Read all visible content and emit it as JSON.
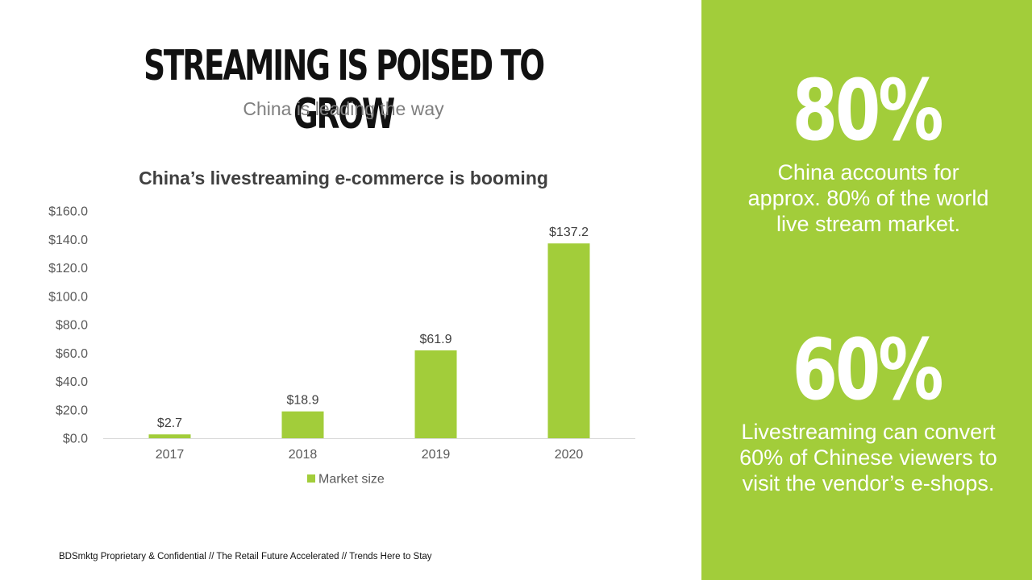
{
  "slide": {
    "title": "STREAMING IS POISED TO GROW",
    "subtitle": "China is leading the way",
    "footer": "BDSmktg Proprietary & Confidential // The Retail Future Accelerated // Trends Here to Stay"
  },
  "stats": [
    {
      "value": "80%",
      "text": "China accounts for approx. 80% of the world live stream market."
    },
    {
      "value": "60%",
      "text": "Livestreaming can convert 60% of Chinese viewers to visit the vendor’s e-shops."
    }
  ],
  "colors": {
    "accent": "#a2cd3a",
    "bar": "#a2cd3a"
  },
  "chart_data": {
    "type": "bar",
    "title": "China’s livestreaming e-commerce is booming",
    "categories": [
      "2017",
      "2018",
      "2019",
      "2020"
    ],
    "series": [
      {
        "name": "Market size",
        "values": [
          2.7,
          18.9,
          61.9,
          137.2
        ]
      }
    ],
    "data_labels": [
      "$2.7",
      "$18.9",
      "$61.9",
      "$137.2"
    ],
    "yticks": [
      "$0.0",
      "$20.0",
      "$40.0",
      "$60.0",
      "$80.0",
      "$100.0",
      "$120.0",
      "$140.0",
      "$160.0"
    ],
    "ylim": [
      0,
      160
    ],
    "grid": false,
    "legend": "bottom"
  }
}
